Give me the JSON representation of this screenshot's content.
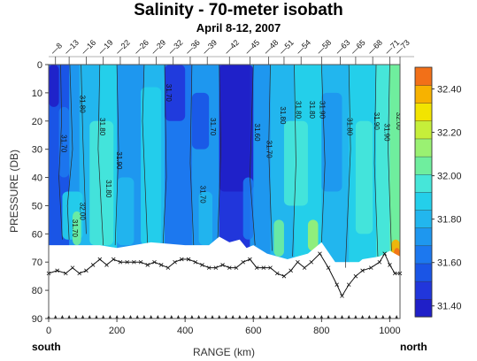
{
  "chart_data": {
    "type": "heatmap",
    "title": "Salinity - 70-meter isobath",
    "subtitle": "April 8-12, 2007",
    "xlabel": "RANGE (km)",
    "ylabel": "PRESSURE (DB)",
    "xlim": [
      0,
      1030
    ],
    "ylim": [
      0,
      90
    ],
    "y_inverted": true,
    "x_ticks": [
      0,
      200,
      400,
      600,
      800,
      1000
    ],
    "y_ticks": [
      0,
      10,
      20,
      30,
      40,
      50,
      60,
      70,
      80,
      90
    ],
    "x_end_labels": {
      "left": "south",
      "right": "north"
    },
    "stations": [
      {
        "label": "8",
        "x": 20
      },
      {
        "label": "13",
        "x": 60
      },
      {
        "label": "16",
        "x": 110
      },
      {
        "label": "19",
        "x": 160
      },
      {
        "label": "22",
        "x": 210
      },
      {
        "label": "26",
        "x": 265
      },
      {
        "label": "29",
        "x": 315
      },
      {
        "label": "32",
        "x": 365
      },
      {
        "label": "36",
        "x": 415
      },
      {
        "label": "39",
        "x": 465
      },
      {
        "label": "42",
        "x": 530
      },
      {
        "label": "45",
        "x": 590
      },
      {
        "label": "48",
        "x": 645
      },
      {
        "label": "51",
        "x": 690
      },
      {
        "label": "54",
        "x": 740
      },
      {
        "label": "58",
        "x": 800
      },
      {
        "label": "63",
        "x": 855
      },
      {
        "label": "65",
        "x": 900
      },
      {
        "label": "68",
        "x": 950
      },
      {
        "label": "71",
        "x": 1000
      },
      {
        "label": "73",
        "x": 1030
      }
    ],
    "colorbar": {
      "labels": [
        "32.40",
        "32.20",
        "32.00",
        "31.80",
        "31.60",
        "31.40"
      ],
      "levels": [
        31.35,
        31.4,
        31.5,
        31.6,
        31.7,
        31.8,
        31.85,
        31.9,
        32.0,
        32.1,
        32.2,
        32.3,
        32.4,
        32.5
      ],
      "colors": [
        "#1f1fc8",
        "#2136db",
        "#1a55e6",
        "#1c78ef",
        "#1e97ef",
        "#22b6ee",
        "#24cfea",
        "#46e6d9",
        "#6fee9e",
        "#9af172",
        "#c6ef3a",
        "#f2e400",
        "#f7b200",
        "#f27018"
      ]
    },
    "bottom_depth": [
      {
        "x": 0,
        "y": 74
      },
      {
        "x": 25,
        "y": 73
      },
      {
        "x": 50,
        "y": 74
      },
      {
        "x": 70,
        "y": 72
      },
      {
        "x": 90,
        "y": 74
      },
      {
        "x": 110,
        "y": 73
      },
      {
        "x": 130,
        "y": 71
      },
      {
        "x": 150,
        "y": 69
      },
      {
        "x": 170,
        "y": 71
      },
      {
        "x": 190,
        "y": 69
      },
      {
        "x": 210,
        "y": 70
      },
      {
        "x": 230,
        "y": 70
      },
      {
        "x": 250,
        "y": 70
      },
      {
        "x": 270,
        "y": 70
      },
      {
        "x": 290,
        "y": 71
      },
      {
        "x": 310,
        "y": 70
      },
      {
        "x": 330,
        "y": 71
      },
      {
        "x": 350,
        "y": 72
      },
      {
        "x": 370,
        "y": 70
      },
      {
        "x": 390,
        "y": 69
      },
      {
        "x": 410,
        "y": 69
      },
      {
        "x": 430,
        "y": 70
      },
      {
        "x": 450,
        "y": 71
      },
      {
        "x": 470,
        "y": 72
      },
      {
        "x": 490,
        "y": 72
      },
      {
        "x": 510,
        "y": 71
      },
      {
        "x": 530,
        "y": 72
      },
      {
        "x": 550,
        "y": 72
      },
      {
        "x": 570,
        "y": 70
      },
      {
        "x": 590,
        "y": 69
      },
      {
        "x": 610,
        "y": 72
      },
      {
        "x": 630,
        "y": 72
      },
      {
        "x": 650,
        "y": 72
      },
      {
        "x": 670,
        "y": 74
      },
      {
        "x": 690,
        "y": 75
      },
      {
        "x": 710,
        "y": 73
      },
      {
        "x": 730,
        "y": 70
      },
      {
        "x": 750,
        "y": 72
      },
      {
        "x": 770,
        "y": 70
      },
      {
        "x": 795,
        "y": 67
      },
      {
        "x": 820,
        "y": 72
      },
      {
        "x": 845,
        "y": 78
      },
      {
        "x": 860,
        "y": 82
      },
      {
        "x": 880,
        "y": 78
      },
      {
        "x": 900,
        "y": 75
      },
      {
        "x": 920,
        "y": 73
      },
      {
        "x": 945,
        "y": 72
      },
      {
        "x": 970,
        "y": 70
      },
      {
        "x": 985,
        "y": 67
      },
      {
        "x": 1000,
        "y": 71
      },
      {
        "x": 1015,
        "y": 74
      },
      {
        "x": 1030,
        "y": 74
      }
    ],
    "data_bottom": [
      {
        "x": 0,
        "y": 64
      },
      {
        "x": 150,
        "y": 64
      },
      {
        "x": 200,
        "y": 65
      },
      {
        "x": 300,
        "y": 63
      },
      {
        "x": 400,
        "y": 64
      },
      {
        "x": 470,
        "y": 64
      },
      {
        "x": 500,
        "y": 61
      },
      {
        "x": 530,
        "y": 63
      },
      {
        "x": 560,
        "y": 62
      },
      {
        "x": 580,
        "y": 65
      },
      {
        "x": 600,
        "y": 64
      },
      {
        "x": 640,
        "y": 67
      },
      {
        "x": 700,
        "y": 69
      },
      {
        "x": 760,
        "y": 67
      },
      {
        "x": 800,
        "y": 63
      },
      {
        "x": 840,
        "y": 70
      },
      {
        "x": 860,
        "y": 77
      },
      {
        "x": 880,
        "y": 73
      },
      {
        "x": 920,
        "y": 69
      },
      {
        "x": 970,
        "y": 68
      },
      {
        "x": 1000,
        "y": 66
      },
      {
        "x": 1030,
        "y": 68
      }
    ],
    "columns": [
      {
        "x0": 0,
        "x1": 60,
        "level": 2
      },
      {
        "x0": 60,
        "x1": 90,
        "level": 4
      },
      {
        "x0": 90,
        "x1": 150,
        "level": 5
      },
      {
        "x0": 150,
        "x1": 200,
        "level": 6
      },
      {
        "x0": 200,
        "x1": 280,
        "level": 4
      },
      {
        "x0": 280,
        "x1": 340,
        "level": 5
      },
      {
        "x0": 340,
        "x1": 420,
        "level": 3
      },
      {
        "x0": 420,
        "x1": 500,
        "level": 4
      },
      {
        "x0": 500,
        "x1": 590,
        "level": 1
      },
      {
        "x0": 590,
        "x1": 650,
        "level": 4
      },
      {
        "x0": 650,
        "x1": 720,
        "level": 5
      },
      {
        "x0": 720,
        "x1": 800,
        "level": 6
      },
      {
        "x0": 800,
        "x1": 880,
        "level": 5
      },
      {
        "x0": 880,
        "x1": 960,
        "level": 6
      },
      {
        "x0": 960,
        "x1": 1000,
        "level": 7
      },
      {
        "x0": 1000,
        "x1": 1030,
        "level": 8
      }
    ],
    "patches": [
      {
        "x0": 0,
        "x1": 30,
        "y0": 0,
        "y1": 15,
        "level": 0
      },
      {
        "x0": 30,
        "x1": 60,
        "y0": 15,
        "y1": 40,
        "level": 3
      },
      {
        "x0": 40,
        "x1": 100,
        "y0": 45,
        "y1": 62,
        "level": 6
      },
      {
        "x0": 70,
        "x1": 95,
        "y0": 52,
        "y1": 64,
        "level": 8
      },
      {
        "x0": 120,
        "x1": 190,
        "y0": 20,
        "y1": 64,
        "level": 7
      },
      {
        "x0": 200,
        "x1": 250,
        "y0": 40,
        "y1": 64,
        "level": 5
      },
      {
        "x0": 270,
        "x1": 330,
        "y0": 8,
        "y1": 64,
        "level": 6
      },
      {
        "x0": 340,
        "x1": 400,
        "y0": 0,
        "y1": 20,
        "level": 1
      },
      {
        "x0": 420,
        "x1": 470,
        "y0": 10,
        "y1": 30,
        "level": 2
      },
      {
        "x0": 440,
        "x1": 480,
        "y0": 45,
        "y1": 64,
        "level": 5
      },
      {
        "x0": 500,
        "x1": 600,
        "y0": 0,
        "y1": 45,
        "level": 0
      },
      {
        "x0": 570,
        "x1": 600,
        "y0": 40,
        "y1": 62,
        "level": 3
      },
      {
        "x0": 660,
        "x1": 690,
        "y0": 55,
        "y1": 68,
        "level": 8
      },
      {
        "x0": 690,
        "x1": 760,
        "y0": 20,
        "y1": 50,
        "level": 7
      },
      {
        "x0": 760,
        "x1": 790,
        "y0": 55,
        "y1": 66,
        "level": 9
      },
      {
        "x0": 800,
        "x1": 860,
        "y0": 10,
        "y1": 45,
        "level": 4
      },
      {
        "x0": 900,
        "x1": 950,
        "y0": 20,
        "y1": 60,
        "level": 7
      },
      {
        "x0": 1005,
        "x1": 1030,
        "y0": 62,
        "y1": 70,
        "level": 12
      },
      {
        "x0": 1012,
        "x1": 1030,
        "y0": 65,
        "y1": 69,
        "level": 13
      }
    ],
    "contour_lines": [
      {
        "points": [
          [
            35,
            0
          ],
          [
            38,
            20
          ],
          [
            30,
            40
          ],
          [
            40,
            62
          ]
        ]
      },
      {
        "points": [
          [
            62,
            0
          ],
          [
            70,
            30
          ],
          [
            55,
            50
          ],
          [
            60,
            62
          ]
        ]
      },
      {
        "points": [
          [
            95,
            0
          ],
          [
            100,
            25
          ],
          [
            110,
            60
          ]
        ]
      },
      {
        "points": [
          [
            150,
            0
          ],
          [
            145,
            30
          ],
          [
            160,
            64
          ]
        ]
      },
      {
        "points": [
          [
            200,
            0
          ],
          [
            205,
            30
          ],
          [
            195,
            64
          ]
        ]
      },
      {
        "points": [
          [
            280,
            0
          ],
          [
            275,
            20
          ],
          [
            290,
            64
          ]
        ]
      },
      {
        "points": [
          [
            340,
            0
          ],
          [
            345,
            40
          ],
          [
            335,
            64
          ]
        ]
      },
      {
        "points": [
          [
            420,
            0
          ],
          [
            415,
            35
          ],
          [
            425,
            64
          ]
        ]
      },
      {
        "points": [
          [
            500,
            0
          ],
          [
            505,
            30
          ],
          [
            495,
            64
          ]
        ]
      },
      {
        "points": [
          [
            600,
            0
          ],
          [
            590,
            40
          ],
          [
            605,
            64
          ]
        ]
      },
      {
        "points": [
          [
            650,
            0
          ],
          [
            645,
            30
          ],
          [
            655,
            66
          ]
        ]
      },
      {
        "points": [
          [
            720,
            0
          ],
          [
            725,
            35
          ],
          [
            715,
            68
          ]
        ]
      },
      {
        "points": [
          [
            800,
            0
          ],
          [
            810,
            35
          ],
          [
            800,
            63
          ]
        ]
      },
      {
        "points": [
          [
            880,
            0
          ],
          [
            885,
            30
          ],
          [
            870,
            72
          ]
        ]
      },
      {
        "points": [
          [
            960,
            0
          ],
          [
            955,
            35
          ],
          [
            965,
            68
          ]
        ]
      },
      {
        "points": [
          [
            1000,
            0
          ],
          [
            995,
            30
          ],
          [
            1005,
            66
          ]
        ]
      }
    ],
    "contour_labels": [
      {
        "text": "31.70",
        "x": 38,
        "y": 28
      },
      {
        "text": "31.80",
        "x": 92,
        "y": 14
      },
      {
        "text": "31.70",
        "x": 70,
        "y": 58
      },
      {
        "text": "32.00",
        "x": 92,
        "y": 52
      },
      {
        "text": "31.80",
        "x": 150,
        "y": 22
      },
      {
        "text": "31.90",
        "x": 200,
        "y": 34
      },
      {
        "text": "31.80",
        "x": 168,
        "y": 44
      },
      {
        "text": "31.70",
        "x": 345,
        "y": 10
      },
      {
        "text": "31.70",
        "x": 475,
        "y": 22
      },
      {
        "text": "31.70",
        "x": 445,
        "y": 46
      },
      {
        "text": "31.60",
        "x": 605,
        "y": 24
      },
      {
        "text": "31.70",
        "x": 640,
        "y": 30
      },
      {
        "text": "31.80",
        "x": 680,
        "y": 18
      },
      {
        "text": "31.80",
        "x": 725,
        "y": 16
      },
      {
        "text": "31.80",
        "x": 765,
        "y": 16
      },
      {
        "text": "31.90",
        "x": 795,
        "y": 16
      },
      {
        "text": "31.80",
        "x": 875,
        "y": 22
      },
      {
        "text": "31.90",
        "x": 955,
        "y": 20
      },
      {
        "text": "31.90",
        "x": 985,
        "y": 24
      },
      {
        "text": "32.00",
        "x": 1020,
        "y": 20
      }
    ]
  }
}
